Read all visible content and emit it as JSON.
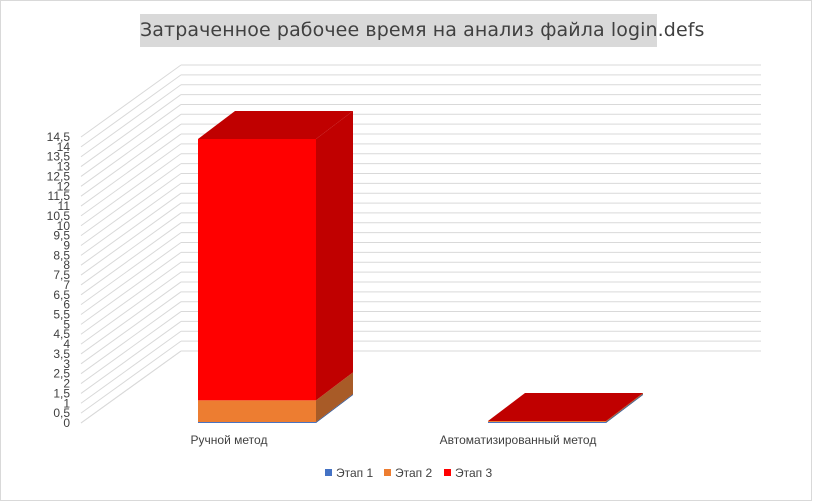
{
  "chart_data": {
    "type": "bar",
    "stacked": true,
    "three_d": true,
    "title": "Затраченное рабочее время на анализ файла login.defs",
    "categories": [
      "Ручной метод",
      "Автоматизированный метод"
    ],
    "series": [
      {
        "name": "Этап 1",
        "values": [
          0.05,
          0.05
        ],
        "color": "#4472c4",
        "side_color": "#2f5597",
        "top_color": "#5b86d1"
      },
      {
        "name": "Этап 2",
        "values": [
          1.1,
          0.05
        ],
        "color": "#ed7d31",
        "side_color": "#a85b27",
        "top_color": "#f29050"
      },
      {
        "name": "Этап 3",
        "values": [
          13.25,
          0.0
        ],
        "color": "#ff0000",
        "side_color": "#c00000",
        "top_color": "#c00000"
      }
    ],
    "ylim": [
      0,
      14.5
    ],
    "yticks": [
      "0",
      "0,5",
      "1",
      "1,5",
      "2",
      "2,5",
      "3",
      "3,5",
      "4",
      "4,5",
      "5",
      "5,5",
      "6",
      "6,5",
      "7",
      "7,5",
      "8",
      "8,5",
      "9",
      "9,5",
      "10",
      "10,5",
      "11",
      "11,5",
      "12",
      "12,5",
      "13",
      "13,5",
      "14",
      "14,5"
    ],
    "grid": true,
    "legend_position": "bottom"
  }
}
